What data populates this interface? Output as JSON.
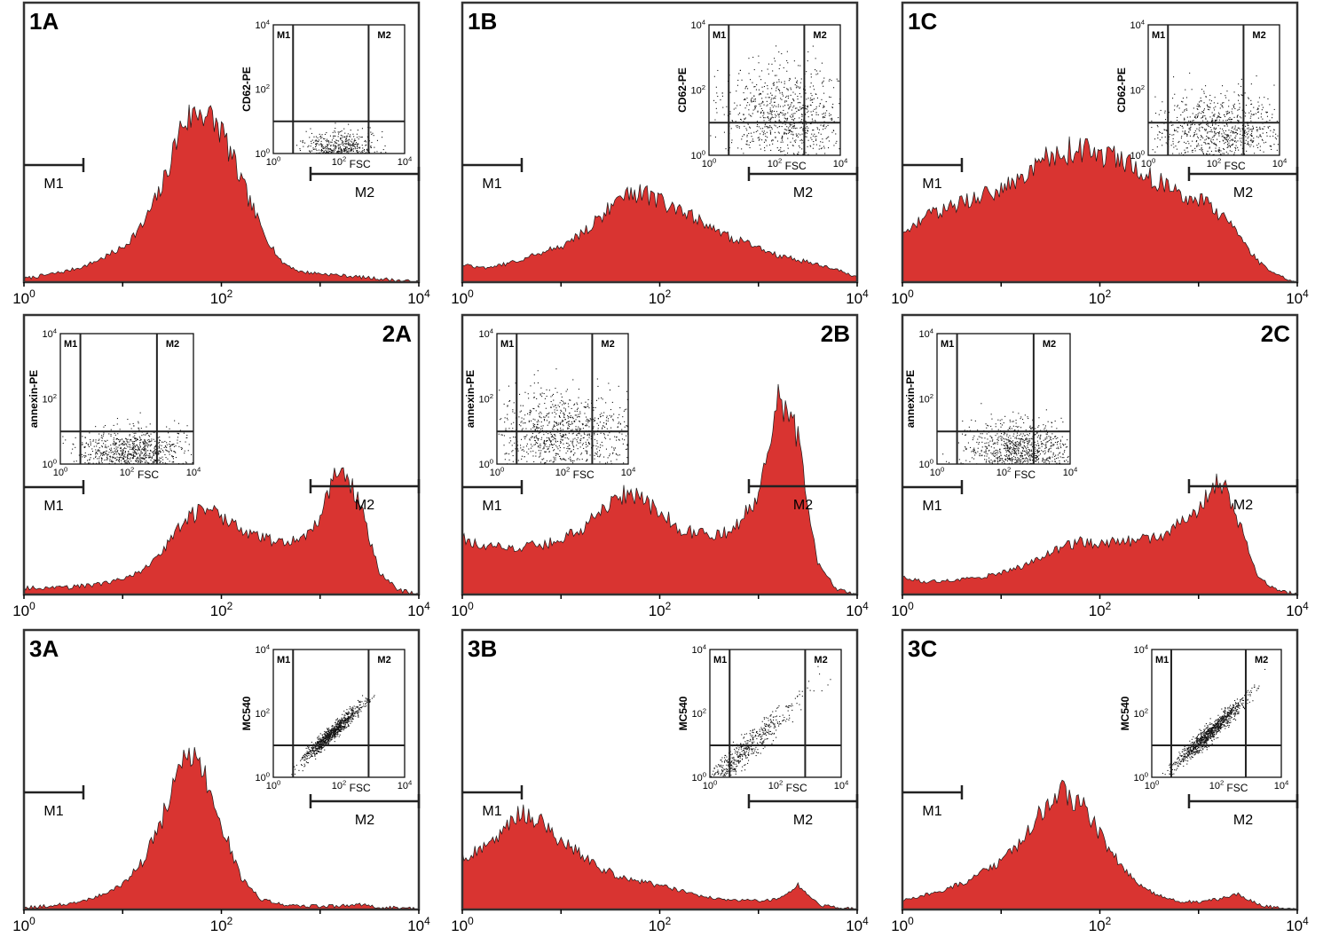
{
  "figure": {
    "background": "#ffffff",
    "histogram_fill": "#d93431",
    "histogram_stroke": "#1a1a1a",
    "frame_color": "#333333"
  },
  "chart_data": [
    {
      "type": "area",
      "panel": "1A",
      "x": [
        1,
        1.6,
        2.5,
        4,
        6.3,
        10,
        16,
        25,
        40,
        63,
        100,
        160,
        250,
        400,
        630,
        1000,
        1600,
        2500,
        4000,
        6300,
        10000
      ],
      "y": [
        2,
        4,
        6,
        9,
        14,
        20,
        33,
        55,
        92,
        100,
        88,
        58,
        32,
        12,
        6,
        5,
        4,
        3,
        2,
        1,
        0
      ],
      "xlabel": "",
      "xlim": [
        1,
        10000
      ],
      "x_scale": "log",
      "x_ticks": [
        "10^0",
        "10^2",
        "10^4"
      ],
      "gates": [
        {
          "name": "M1",
          "range": [
            1,
            4
          ]
        },
        {
          "name": "M2",
          "range": [
            800,
            10000
          ]
        }
      ],
      "inset": {
        "ylabel": "CD62-PE",
        "xlabel": "FSC",
        "quadrant_labels": [
          "M1",
          "M2"
        ],
        "x_ticks": [
          "10^0",
          "10^2",
          "10^4"
        ],
        "y_ticks": [
          "10^0",
          "10^2",
          "10^4"
        ],
        "gate_x": [
          4,
          800
        ],
        "gate_y": 10,
        "cluster": {
          "cx": 100,
          "cy": 1.3,
          "sx": 0.5,
          "sy": 0.3,
          "n": 650
        }
      }
    },
    {
      "type": "area",
      "panel": "1B",
      "x": [
        1,
        1.6,
        2.5,
        4,
        6.3,
        10,
        16,
        25,
        40,
        63,
        100,
        160,
        250,
        400,
        630,
        1000,
        1600,
        2500,
        4000,
        6300,
        10000
      ],
      "y": [
        10,
        8,
        10,
        13,
        17,
        21,
        28,
        38,
        48,
        52,
        47,
        41,
        36,
        28,
        24,
        20,
        15,
        13,
        10,
        7,
        3
      ],
      "xlabel": "",
      "xlim": [
        1,
        10000
      ],
      "x_scale": "log",
      "x_ticks": [
        "10^0",
        "10^2",
        "10^4"
      ],
      "gates": [
        {
          "name": "M1",
          "range": [
            1,
            4
          ]
        },
        {
          "name": "M2",
          "range": [
            800,
            10000
          ]
        }
      ],
      "inset": {
        "ylabel": "CD62-PE",
        "xlabel": "FSC",
        "quadrant_labels": [
          "M1",
          "M2"
        ],
        "x_ticks": [
          "10^0",
          "10^2",
          "10^4"
        ],
        "y_ticks": [
          "10^0",
          "10^2",
          "10^4"
        ],
        "gate_x": [
          4,
          800
        ],
        "gate_y": 10,
        "cluster": {
          "cx": 200,
          "cy": 15,
          "sx": 1.0,
          "sy": 0.8,
          "n": 900
        }
      }
    },
    {
      "type": "area",
      "panel": "1C",
      "x": [
        1,
        1.6,
        2.5,
        4,
        6.3,
        10,
        16,
        25,
        40,
        63,
        100,
        160,
        250,
        400,
        630,
        1000,
        1600,
        2500,
        4000,
        6300,
        10000
      ],
      "y": [
        30,
        36,
        42,
        46,
        50,
        55,
        62,
        70,
        75,
        78,
        74,
        70,
        66,
        58,
        52,
        48,
        40,
        28,
        12,
        4,
        0
      ],
      "xlabel": "",
      "xlim": [
        1,
        10000
      ],
      "x_scale": "log",
      "x_ticks": [
        "10^0",
        "10^2",
        "10^4"
      ],
      "gates": [
        {
          "name": "M1",
          "range": [
            1,
            4
          ]
        },
        {
          "name": "M2",
          "range": [
            800,
            10000
          ]
        }
      ],
      "inset": {
        "ylabel": "CD62-PE",
        "xlabel": "FSC",
        "quadrant_labels": [
          "M1",
          "M2"
        ],
        "x_ticks": [
          "10^0",
          "10^2",
          "10^4"
        ],
        "y_ticks": [
          "10^0",
          "10^2",
          "10^4"
        ],
        "gate_x": [
          4,
          800
        ],
        "gate_y": 10,
        "cluster": {
          "cx": 150,
          "cy": 5,
          "sx": 1.0,
          "sy": 0.6,
          "n": 900
        }
      }
    },
    {
      "type": "area",
      "panel": "2A",
      "x": [
        1,
        1.6,
        2.5,
        4,
        6.3,
        10,
        16,
        25,
        40,
        63,
        100,
        160,
        250,
        400,
        630,
        1000,
        1600,
        2500,
        4000,
        6300,
        10000
      ],
      "y": [
        3,
        3,
        3,
        4,
        5,
        7,
        11,
        20,
        32,
        40,
        36,
        30,
        26,
        24,
        25,
        35,
        62,
        42,
        10,
        2,
        0
      ],
      "xlabel": "",
      "xlim": [
        1,
        10000
      ],
      "x_scale": "log",
      "x_ticks": [
        "10^0",
        "10^2",
        "10^4"
      ],
      "gates": [
        {
          "name": "M1",
          "range": [
            1,
            4
          ]
        },
        {
          "name": "M2",
          "range": [
            800,
            10000
          ]
        }
      ],
      "inset": {
        "ylabel": "annexin-PE",
        "xlabel": "FSC",
        "quadrant_labels": [
          "M1",
          "M2"
        ],
        "x_ticks": [
          "10^0",
          "10^2",
          "10^4"
        ],
        "y_ticks": [
          "10^0",
          "10^2",
          "10^4"
        ],
        "gate_x": [
          4,
          800
        ],
        "gate_y": 10,
        "cluster": {
          "cx": 150,
          "cy": 2,
          "sx": 0.8,
          "sy": 0.4,
          "n": 1000
        }
      }
    },
    {
      "type": "area",
      "panel": "2B",
      "x": [
        1,
        1.6,
        2.5,
        4,
        6.3,
        10,
        16,
        25,
        40,
        63,
        100,
        160,
        250,
        400,
        630,
        1000,
        1600,
        2500,
        4000,
        6300,
        10000
      ],
      "y": [
        26,
        22,
        22,
        22,
        23,
        25,
        30,
        38,
        46,
        44,
        38,
        30,
        28,
        27,
        32,
        46,
        90,
        72,
        14,
        2,
        0
      ],
      "xlabel": "",
      "xlim": [
        1,
        10000
      ],
      "x_scale": "log",
      "x_ticks": [
        "10^0",
        "10^2",
        "10^4"
      ],
      "gates": [
        {
          "name": "M1",
          "range": [
            1,
            4
          ]
        },
        {
          "name": "M2",
          "range": [
            800,
            10000
          ]
        }
      ],
      "inset": {
        "ylabel": "annexin-PE",
        "xlabel": "FSC",
        "quadrant_labels": [
          "M1",
          "M2"
        ],
        "x_ticks": [
          "10^0",
          "10^2",
          "10^4"
        ],
        "y_ticks": [
          "10^0",
          "10^2",
          "10^4"
        ],
        "gate_x": [
          4,
          800
        ],
        "gate_y": 10,
        "cluster": {
          "cx": 100,
          "cy": 8,
          "sx": 1.1,
          "sy": 0.7,
          "n": 1000
        }
      }
    },
    {
      "type": "area",
      "panel": "2C",
      "x": [
        1,
        1.6,
        2.5,
        4,
        6.3,
        10,
        16,
        25,
        40,
        63,
        100,
        160,
        250,
        400,
        630,
        1000,
        1600,
        2500,
        4000,
        6300,
        10000
      ],
      "y": [
        8,
        6,
        6,
        7,
        8,
        10,
        13,
        17,
        22,
        24,
        24,
        24,
        25,
        27,
        32,
        40,
        55,
        35,
        8,
        2,
        0
      ],
      "xlabel": "",
      "xlim": [
        1,
        10000
      ],
      "x_scale": "log",
      "x_ticks": [
        "10^0",
        "10^2",
        "10^4"
      ],
      "gates": [
        {
          "name": "M1",
          "range": [
            1,
            4
          ]
        },
        {
          "name": "M2",
          "range": [
            800,
            10000
          ]
        }
      ],
      "inset": {
        "ylabel": "annexin-PE",
        "xlabel": "FSC",
        "quadrant_labels": [
          "M1",
          "M2"
        ],
        "x_ticks": [
          "10^0",
          "10^2",
          "10^4"
        ],
        "y_ticks": [
          "10^0",
          "10^2",
          "10^4"
        ],
        "gate_x": [
          4,
          800
        ],
        "gate_y": 10,
        "cluster": {
          "cx": 300,
          "cy": 2.5,
          "sx": 0.8,
          "sy": 0.45,
          "n": 1000
        }
      }
    },
    {
      "type": "area",
      "panel": "3A",
      "x": [
        1,
        1.6,
        2.5,
        4,
        6.3,
        10,
        16,
        25,
        40,
        63,
        100,
        160,
        250,
        400,
        630,
        1000,
        1600,
        2500,
        4000,
        6300,
        10000
      ],
      "y": [
        1,
        2,
        3,
        5,
        9,
        15,
        28,
        52,
        88,
        84,
        50,
        18,
        6,
        3,
        2,
        2,
        2,
        3,
        1,
        1,
        0
      ],
      "xlabel": "",
      "xlim": [
        1,
        10000
      ],
      "x_scale": "log",
      "x_ticks": [
        "10^0",
        "10^2",
        "10^4"
      ],
      "gates": [
        {
          "name": "M1",
          "range": [
            1,
            4
          ]
        },
        {
          "name": "M2",
          "range": [
            800,
            10000
          ]
        }
      ],
      "inset": {
        "ylabel": "MC540",
        "xlabel": "FSC",
        "quadrant_labels": [
          "M1",
          "M2"
        ],
        "x_ticks": [
          "10^0",
          "10^2",
          "10^4"
        ],
        "y_ticks": [
          "10^0",
          "10^2",
          "10^4"
        ],
        "gate_x": [
          4,
          800
        ],
        "gate_y": 10,
        "cluster": {
          "cx": 60,
          "cy": 25,
          "sx": 0.45,
          "sy": 0.35,
          "n": 900,
          "diagonal": true
        }
      }
    },
    {
      "type": "area",
      "panel": "3B",
      "x": [
        1,
        1.6,
        2.5,
        4,
        6.3,
        10,
        16,
        25,
        40,
        63,
        100,
        160,
        250,
        400,
        630,
        1000,
        1600,
        2500,
        4000,
        6300,
        10000
      ],
      "y": [
        30,
        35,
        44,
        58,
        50,
        40,
        32,
        24,
        19,
        16,
        14,
        11,
        8,
        6,
        5,
        5,
        6,
        14,
        3,
        1,
        0
      ],
      "xlabel": "",
      "xlim": [
        1,
        10000
      ],
      "x_scale": "log",
      "x_ticks": [
        "10^0",
        "10^2",
        "10^4"
      ],
      "gates": [
        {
          "name": "M1",
          "range": [
            1,
            4
          ]
        },
        {
          "name": "M2",
          "range": [
            800,
            10000
          ]
        }
      ],
      "inset": {
        "ylabel": "MC540",
        "xlabel": "FSC",
        "quadrant_labels": [
          "M1",
          "M2"
        ],
        "x_ticks": [
          "10^0",
          "10^2",
          "10^4"
        ],
        "y_ticks": [
          "10^0",
          "10^2",
          "10^4"
        ],
        "gate_x": [
          4,
          800
        ],
        "gate_y": 10,
        "cluster": {
          "cx": 8,
          "cy": 5,
          "sx": 0.9,
          "sy": 0.7,
          "n": 600,
          "diagonal": true
        }
      }
    },
    {
      "type": "area",
      "panel": "3C",
      "x": [
        1,
        1.6,
        2.5,
        4,
        6.3,
        10,
        16,
        25,
        40,
        63,
        100,
        160,
        250,
        400,
        630,
        1000,
        1600,
        2500,
        4000,
        6300,
        10000
      ],
      "y": [
        5,
        8,
        11,
        15,
        21,
        28,
        40,
        56,
        68,
        62,
        44,
        26,
        14,
        8,
        5,
        4,
        6,
        9,
        3,
        1,
        0
      ],
      "xlabel": "",
      "xlim": [
        1,
        10000
      ],
      "x_scale": "log",
      "x_ticks": [
        "10^0",
        "10^2",
        "10^4"
      ],
      "gates": [
        {
          "name": "M1",
          "range": [
            1,
            4
          ]
        },
        {
          "name": "M2",
          "range": [
            800,
            10000
          ]
        }
      ],
      "inset": {
        "ylabel": "MC540",
        "xlabel": "FSC",
        "quadrant_labels": [
          "M1",
          "M2"
        ],
        "x_ticks": [
          "10^0",
          "10^2",
          "10^4"
        ],
        "y_ticks": [
          "10^0",
          "10^2",
          "10^4"
        ],
        "gate_x": [
          4,
          800
        ],
        "gate_y": 10,
        "cluster": {
          "cx": 60,
          "cy": 25,
          "sx": 0.55,
          "sy": 0.4,
          "n": 1000,
          "diagonal": true
        }
      }
    }
  ]
}
